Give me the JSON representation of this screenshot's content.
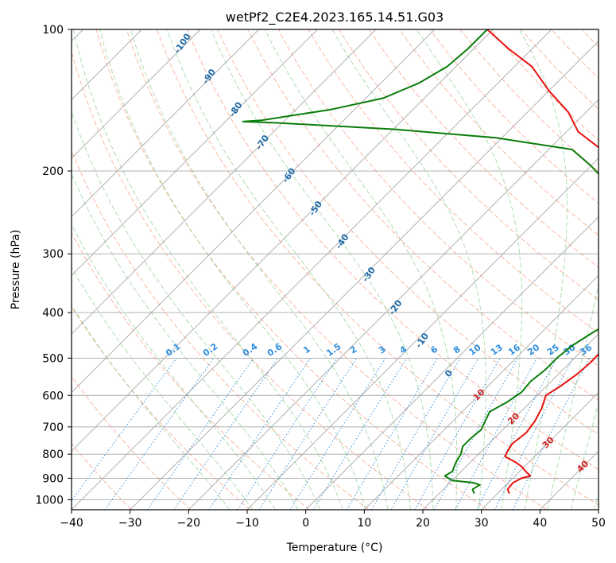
{
  "chart_data": {
    "type": "line",
    "subtype": "skew-t log-p diagram",
    "title": "wetPf2_C2E4.2023.165.14.51.G03",
    "xlabel": "Temperature (°C)",
    "ylabel": "Pressure (hPa)",
    "xlim": [
      -40,
      50
    ],
    "ylim": [
      1050,
      100
    ],
    "x_ticks": [
      -40,
      -30,
      -20,
      -10,
      0,
      10,
      20,
      30,
      40,
      50
    ],
    "y_ticks": [
      100,
      200,
      300,
      400,
      500,
      600,
      700,
      800,
      900,
      1000
    ],
    "grid": true,
    "colors": {
      "temperature": "#e8120f",
      "dewpoint": "#0a7d0a",
      "isotherm": "#a8a8a8",
      "dry_adiabat": "#f7a083",
      "moist_adiabat": "#9bd49b",
      "mixing_ratio": "#3d92d8",
      "dry_adiabat_label": "#d22222",
      "moist_adiabat_label": "#1f6aa8",
      "mixing_ratio_label": "#2f8fe0"
    },
    "dry_adiabat_labels": [
      "10",
      "20",
      "30",
      "40"
    ],
    "moist_adiabat_labels": [
      "-100",
      "-90",
      "-80",
      "-70",
      "-60",
      "-50",
      "-40",
      "-30",
      "-20",
      "-10",
      "0"
    ],
    "mixing_ratio_labels": [
      "0.1",
      "0.2",
      "0.4",
      "0.6",
      "1",
      "1.5",
      "2",
      "3",
      "4",
      "6",
      "8",
      "10",
      "13",
      "16",
      "20",
      "25",
      "30",
      "36"
    ],
    "series": [
      {
        "name": "Temperature",
        "points": [
          [
            32.0,
            970
          ],
          [
            31.0,
            950
          ],
          [
            30.8,
            920
          ],
          [
            31.5,
            900
          ],
          [
            32.6,
            890
          ],
          [
            31.0,
            870
          ],
          [
            29.5,
            850
          ],
          [
            27.5,
            830
          ],
          [
            25.0,
            810
          ],
          [
            24.5,
            790
          ],
          [
            24.0,
            760
          ],
          [
            24.5,
            720
          ],
          [
            24.0,
            680
          ],
          [
            23.0,
            640
          ],
          [
            21.5,
            600
          ],
          [
            22.5,
            570
          ],
          [
            23.2,
            540
          ],
          [
            23.5,
            510
          ],
          [
            23.4,
            480
          ],
          [
            23.0,
            450
          ],
          [
            22.5,
            420
          ],
          [
            20.0,
            410
          ],
          [
            18.0,
            380
          ],
          [
            16.5,
            350
          ],
          [
            15.0,
            330
          ],
          [
            13.5,
            310
          ],
          [
            11.0,
            290
          ],
          [
            9.0,
            270
          ],
          [
            6.5,
            250
          ],
          [
            2.0,
            230
          ],
          [
            -3.0,
            210
          ],
          [
            -6.5,
            195
          ],
          [
            -11.0,
            180
          ],
          [
            -18.0,
            165
          ],
          [
            -23.0,
            150
          ],
          [
            -30.0,
            135
          ],
          [
            -37.0,
            120
          ],
          [
            -44.0,
            110
          ],
          [
            -51.0,
            100
          ]
        ]
      },
      {
        "name": "Dewpoint",
        "points": [
          [
            26.0,
            970
          ],
          [
            25.0,
            950
          ],
          [
            25.5,
            930
          ],
          [
            24.0,
            920
          ],
          [
            20.0,
            910
          ],
          [
            18.0,
            890
          ],
          [
            18.5,
            870
          ],
          [
            18.0,
            850
          ],
          [
            17.5,
            830
          ],
          [
            17.0,
            800
          ],
          [
            16.0,
            770
          ],
          [
            16.0,
            740
          ],
          [
            16.3,
            710
          ],
          [
            15.5,
            680
          ],
          [
            14.7,
            650
          ],
          [
            16.0,
            620
          ],
          [
            16.8,
            590
          ],
          [
            16.5,
            560
          ],
          [
            17.0,
            530
          ],
          [
            17.0,
            500
          ],
          [
            17.5,
            470
          ],
          [
            18.8,
            440
          ],
          [
            20.0,
            420
          ],
          [
            20.0,
            410
          ],
          [
            17.0,
            390
          ],
          [
            15.0,
            370
          ],
          [
            14.0,
            350
          ],
          [
            12.5,
            330
          ],
          [
            11.0,
            310
          ],
          [
            8.5,
            290
          ],
          [
            6.0,
            270
          ],
          [
            5.0,
            250
          ],
          [
            1.5,
            230
          ],
          [
            -5.0,
            210
          ],
          [
            -10.0,
            195
          ],
          [
            -16.0,
            180
          ],
          [
            -31.0,
            170
          ],
          [
            -50.0,
            163
          ],
          [
            -71.0,
            158
          ],
          [
            -77.0,
            157
          ],
          [
            -74.0,
            156
          ],
          [
            -64.0,
            148
          ],
          [
            -57.0,
            140
          ],
          [
            -53.5,
            130
          ],
          [
            -51.5,
            120
          ],
          [
            -51.0,
            110
          ],
          [
            -51.0,
            100
          ]
        ]
      }
    ]
  }
}
